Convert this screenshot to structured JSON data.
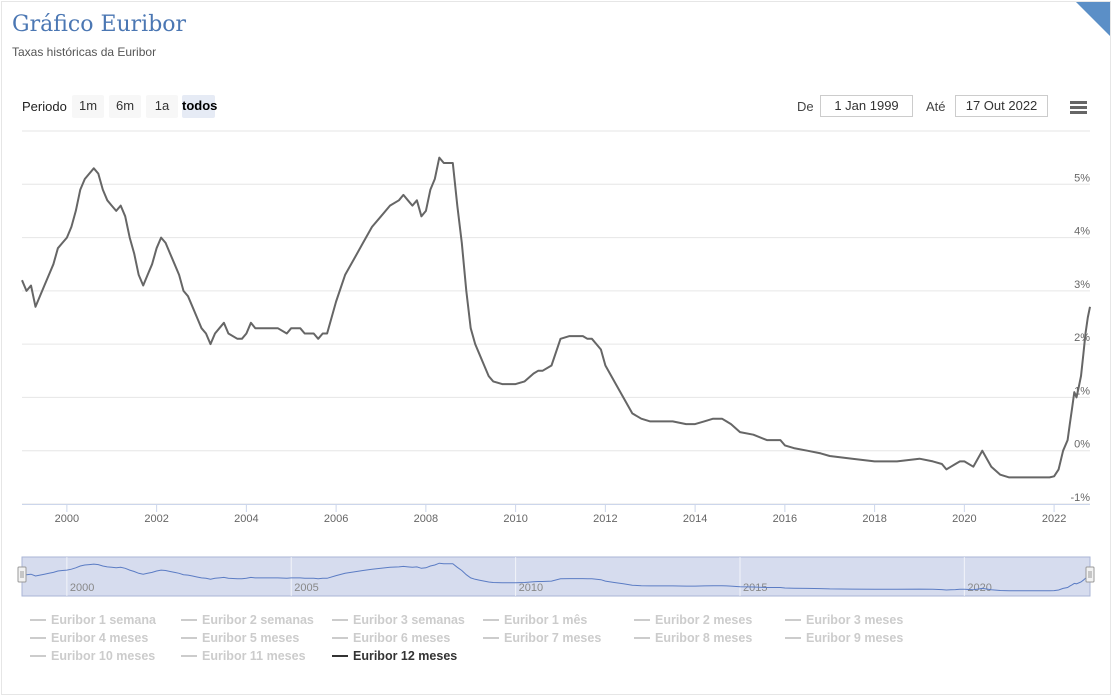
{
  "header": {
    "title": "Gráfico Euribor",
    "subtitle": "Taxas históricas da Euribor"
  },
  "range_selector": {
    "label": "Periodo",
    "buttons": [
      "1m",
      "6m",
      "1a",
      "todos"
    ],
    "active": "todos",
    "from_label": "De",
    "from_value": "1 Jan 1999",
    "to_label": "Até",
    "to_value": "17 Out 2022"
  },
  "menu": {
    "icon": "hamburger-menu-icon"
  },
  "colors": {
    "title": "#4b77b3",
    "series": "#666666",
    "navigator_fill": "#d6dcee",
    "navigator_line": "#5b7cc4"
  },
  "chart_data": {
    "type": "line",
    "title": "Gráfico Euribor",
    "subtitle": "Taxas históricas da Euribor",
    "x_ticks": [
      "2000",
      "2002",
      "2004",
      "2006",
      "2008",
      "2010",
      "2012",
      "2014",
      "2016",
      "2018",
      "2020",
      "2022"
    ],
    "y_ticks": [
      "5%",
      "4%",
      "3%",
      "2%",
      "1%",
      "0%",
      "-1%"
    ],
    "xlim": [
      1999.0,
      2022.8
    ],
    "ylim": [
      -1,
      6
    ],
    "grid": true,
    "navigator_ticks": [
      "2000",
      "2005",
      "2010",
      "2015",
      "2020"
    ],
    "series": [
      {
        "name": "Euribor 12 meses",
        "x": [
          1999.0,
          1999.1,
          1999.2,
          1999.3,
          1999.4,
          1999.5,
          1999.6,
          1999.7,
          1999.8,
          1999.9,
          2000.0,
          2000.1,
          2000.2,
          2000.3,
          2000.4,
          2000.5,
          2000.6,
          2000.7,
          2000.8,
          2000.9,
          2001.0,
          2001.1,
          2001.2,
          2001.3,
          2001.4,
          2001.5,
          2001.6,
          2001.7,
          2001.8,
          2001.9,
          2002.0,
          2002.1,
          2002.2,
          2002.3,
          2002.4,
          2002.5,
          2002.6,
          2002.7,
          2002.8,
          2002.9,
          2003.0,
          2003.1,
          2003.2,
          2003.3,
          2003.4,
          2003.5,
          2003.6,
          2003.8,
          2003.9,
          2004.0,
          2004.1,
          2004.2,
          2004.3,
          2004.5,
          2004.7,
          2004.9,
          2005.0,
          2005.1,
          2005.2,
          2005.3,
          2005.4,
          2005.5,
          2005.6,
          2005.7,
          2005.8,
          2006.0,
          2006.2,
          2006.4,
          2006.6,
          2006.8,
          2007.0,
          2007.2,
          2007.4,
          2007.5,
          2007.6,
          2007.7,
          2007.8,
          2007.9,
          2008.0,
          2008.1,
          2008.2,
          2008.3,
          2008.4,
          2008.5,
          2008.6,
          2008.7,
          2008.8,
          2008.9,
          2009.0,
          2009.1,
          2009.2,
          2009.3,
          2009.4,
          2009.5,
          2009.7,
          2009.9,
          2010.0,
          2010.2,
          2010.4,
          2010.5,
          2010.6,
          2010.8,
          2011.0,
          2011.2,
          2011.3,
          2011.4,
          2011.5,
          2011.6,
          2011.7,
          2011.8,
          2011.9,
          2012.0,
          2012.2,
          2012.4,
          2012.6,
          2012.8,
          2013.0,
          2013.2,
          2013.5,
          2013.8,
          2014.0,
          2014.2,
          2014.4,
          2014.6,
          2014.7,
          2014.8,
          2015.0,
          2015.3,
          2015.6,
          2015.9,
          2016.0,
          2016.2,
          2016.5,
          2016.8,
          2017.0,
          2017.5,
          2018.0,
          2018.5,
          2019.0,
          2019.3,
          2019.5,
          2019.6,
          2019.7,
          2019.8,
          2019.9,
          2020.0,
          2020.2,
          2020.3,
          2020.4,
          2020.6,
          2020.8,
          2021.0,
          2021.3,
          2021.6,
          2021.9,
          2022.0,
          2022.1,
          2022.2,
          2022.3,
          2022.35,
          2022.4,
          2022.45,
          2022.5,
          2022.55,
          2022.6,
          2022.65,
          2022.7,
          2022.75,
          2022.8
        ],
        "values": [
          3.2,
          3.0,
          3.1,
          2.7,
          2.9,
          3.1,
          3.3,
          3.5,
          3.8,
          3.9,
          4.0,
          4.2,
          4.5,
          4.9,
          5.1,
          5.2,
          5.3,
          5.2,
          4.9,
          4.7,
          4.6,
          4.5,
          4.6,
          4.4,
          4.0,
          3.7,
          3.3,
          3.1,
          3.3,
          3.5,
          3.8,
          4.0,
          3.9,
          3.7,
          3.5,
          3.3,
          3.0,
          2.9,
          2.7,
          2.5,
          2.3,
          2.2,
          2.0,
          2.2,
          2.3,
          2.4,
          2.2,
          2.1,
          2.1,
          2.2,
          2.4,
          2.3,
          2.3,
          2.3,
          2.3,
          2.2,
          2.3,
          2.3,
          2.3,
          2.2,
          2.2,
          2.2,
          2.1,
          2.2,
          2.2,
          2.8,
          3.3,
          3.6,
          3.9,
          4.2,
          4.4,
          4.6,
          4.7,
          4.8,
          4.7,
          4.6,
          4.7,
          4.4,
          4.5,
          4.9,
          5.1,
          5.5,
          5.4,
          5.4,
          5.4,
          4.6,
          3.9,
          3.0,
          2.3,
          2.0,
          1.8,
          1.6,
          1.4,
          1.3,
          1.25,
          1.25,
          1.25,
          1.3,
          1.45,
          1.5,
          1.5,
          1.6,
          2.1,
          2.15,
          2.15,
          2.15,
          2.15,
          2.1,
          2.1,
          2.0,
          1.9,
          1.6,
          1.3,
          1.0,
          0.7,
          0.6,
          0.55,
          0.55,
          0.55,
          0.5,
          0.5,
          0.55,
          0.6,
          0.6,
          0.55,
          0.5,
          0.35,
          0.3,
          0.2,
          0.2,
          0.1,
          0.05,
          0.0,
          -0.05,
          -0.1,
          -0.15,
          -0.2,
          -0.2,
          -0.15,
          -0.2,
          -0.25,
          -0.35,
          -0.3,
          -0.25,
          -0.2,
          -0.2,
          -0.3,
          -0.15,
          0.0,
          -0.3,
          -0.45,
          -0.5,
          -0.5,
          -0.5,
          -0.5,
          -0.48,
          -0.35,
          0.0,
          0.2,
          0.5,
          0.8,
          1.1,
          1.0,
          1.2,
          1.4,
          1.8,
          2.2,
          2.5,
          2.7
        ]
      }
    ],
    "legend": {
      "placement": "bottom",
      "items": [
        {
          "label": "Euribor 1 semana",
          "visible": false
        },
        {
          "label": "Euribor 2 semanas",
          "visible": false
        },
        {
          "label": "Euribor 3 semanas",
          "visible": false
        },
        {
          "label": "Euribor 1 mês",
          "visible": false
        },
        {
          "label": "Euribor 2 meses",
          "visible": false
        },
        {
          "label": "Euribor 3 meses",
          "visible": false
        },
        {
          "label": "Euribor 4 meses",
          "visible": false
        },
        {
          "label": "Euribor 5 meses",
          "visible": false
        },
        {
          "label": "Euribor 6 meses",
          "visible": false
        },
        {
          "label": "Euribor 7 meses",
          "visible": false
        },
        {
          "label": "Euribor 8 meses",
          "visible": false
        },
        {
          "label": "Euribor 9 meses",
          "visible": false
        },
        {
          "label": "Euribor 10 meses",
          "visible": false
        },
        {
          "label": "Euribor 11 meses",
          "visible": false
        },
        {
          "label": "Euribor 12 meses",
          "visible": true
        }
      ]
    }
  }
}
